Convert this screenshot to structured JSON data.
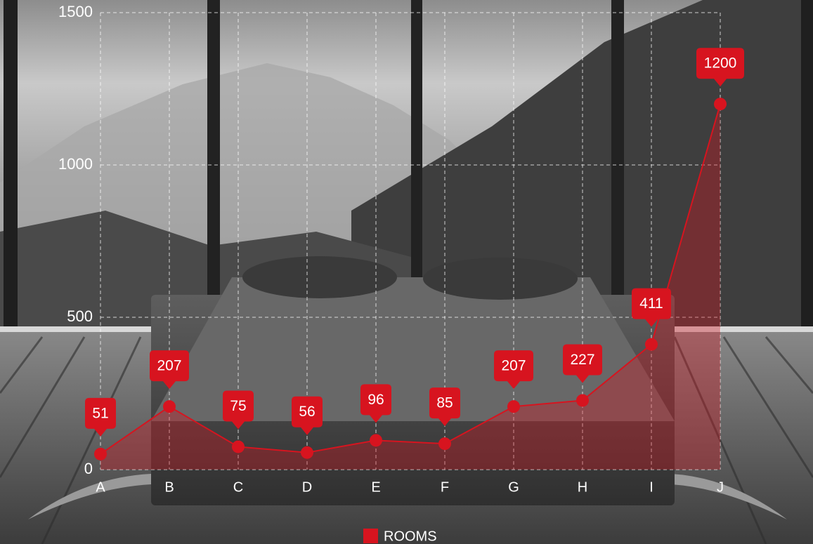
{
  "chart_data": {
    "type": "line",
    "categories": [
      "A",
      "B",
      "C",
      "D",
      "E",
      "F",
      "G",
      "H",
      "I",
      "J"
    ],
    "series": [
      {
        "name": "ROOMS",
        "color": "#d7141f",
        "values": [
          51,
          207,
          75,
          56,
          96,
          85,
          207,
          227,
          411,
          1200
        ]
      }
    ],
    "ylim": [
      0,
      1500
    ],
    "yticks": [
      0,
      500,
      1000,
      1500
    ],
    "grid": true,
    "legend": "bottom",
    "area": true
  }
}
